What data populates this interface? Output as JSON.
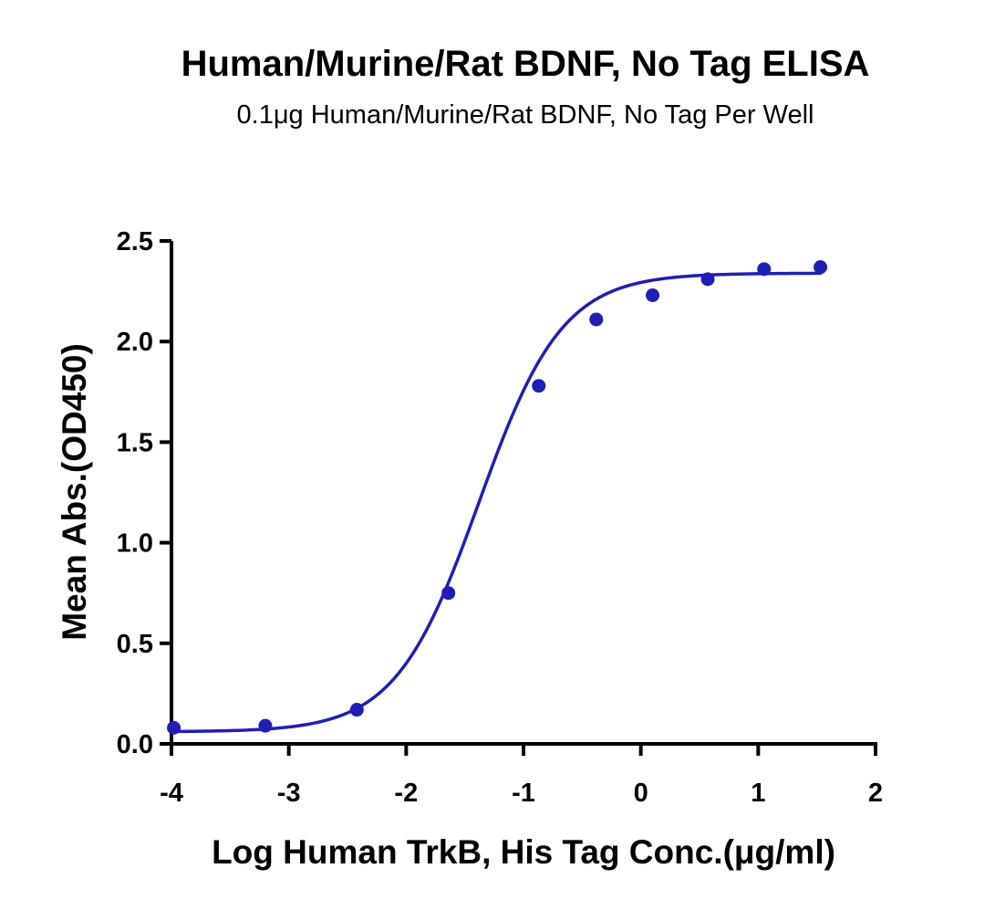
{
  "title": "Human/Murine/Rat BDNF, No Tag ELISA",
  "subtitle": "0.1μg Human/Murine/Rat BDNF, No Tag Per Well",
  "colors": {
    "series": "#1f1fb4",
    "axis": "#000000"
  },
  "chart_data": {
    "type": "scatter",
    "title": "Human/Murine/Rat BDNF, No Tag ELISA",
    "subtitle": "0.1μg Human/Murine/Rat BDNF, No Tag Per Well",
    "xlabel": "Log Human TrkB, His Tag Conc.(μg/ml)",
    "ylabel": "Mean Abs.(OD450)",
    "xlim": [
      -4,
      2
    ],
    "ylim": [
      0,
      2.5
    ],
    "xticks": [
      -4,
      -3,
      -2,
      -1,
      0,
      1,
      2
    ],
    "yticks": [
      0.0,
      0.5,
      1.0,
      1.5,
      2.0,
      2.5
    ],
    "xtick_labels": [
      "-4",
      "-3",
      "-2",
      "-1",
      "0",
      "1",
      "2"
    ],
    "ytick_labels": [
      "0.0",
      "0.5",
      "1.0",
      "1.5",
      "2.0",
      "2.5"
    ],
    "grid": false,
    "series": [
      {
        "x": [
          -3.98,
          -3.2,
          -2.42,
          -1.64,
          -0.87,
          -0.38,
          0.1,
          0.57,
          1.05,
          1.53
        ],
        "y": [
          0.08,
          0.09,
          0.17,
          0.75,
          1.78,
          2.11,
          2.23,
          2.31,
          2.36,
          2.37
        ]
      }
    ],
    "fit_curve": {
      "model": "four-parameter logistic",
      "bottom": 0.06,
      "top": 2.34,
      "log_ec50": -1.38,
      "hill_slope": 1.22
    }
  }
}
